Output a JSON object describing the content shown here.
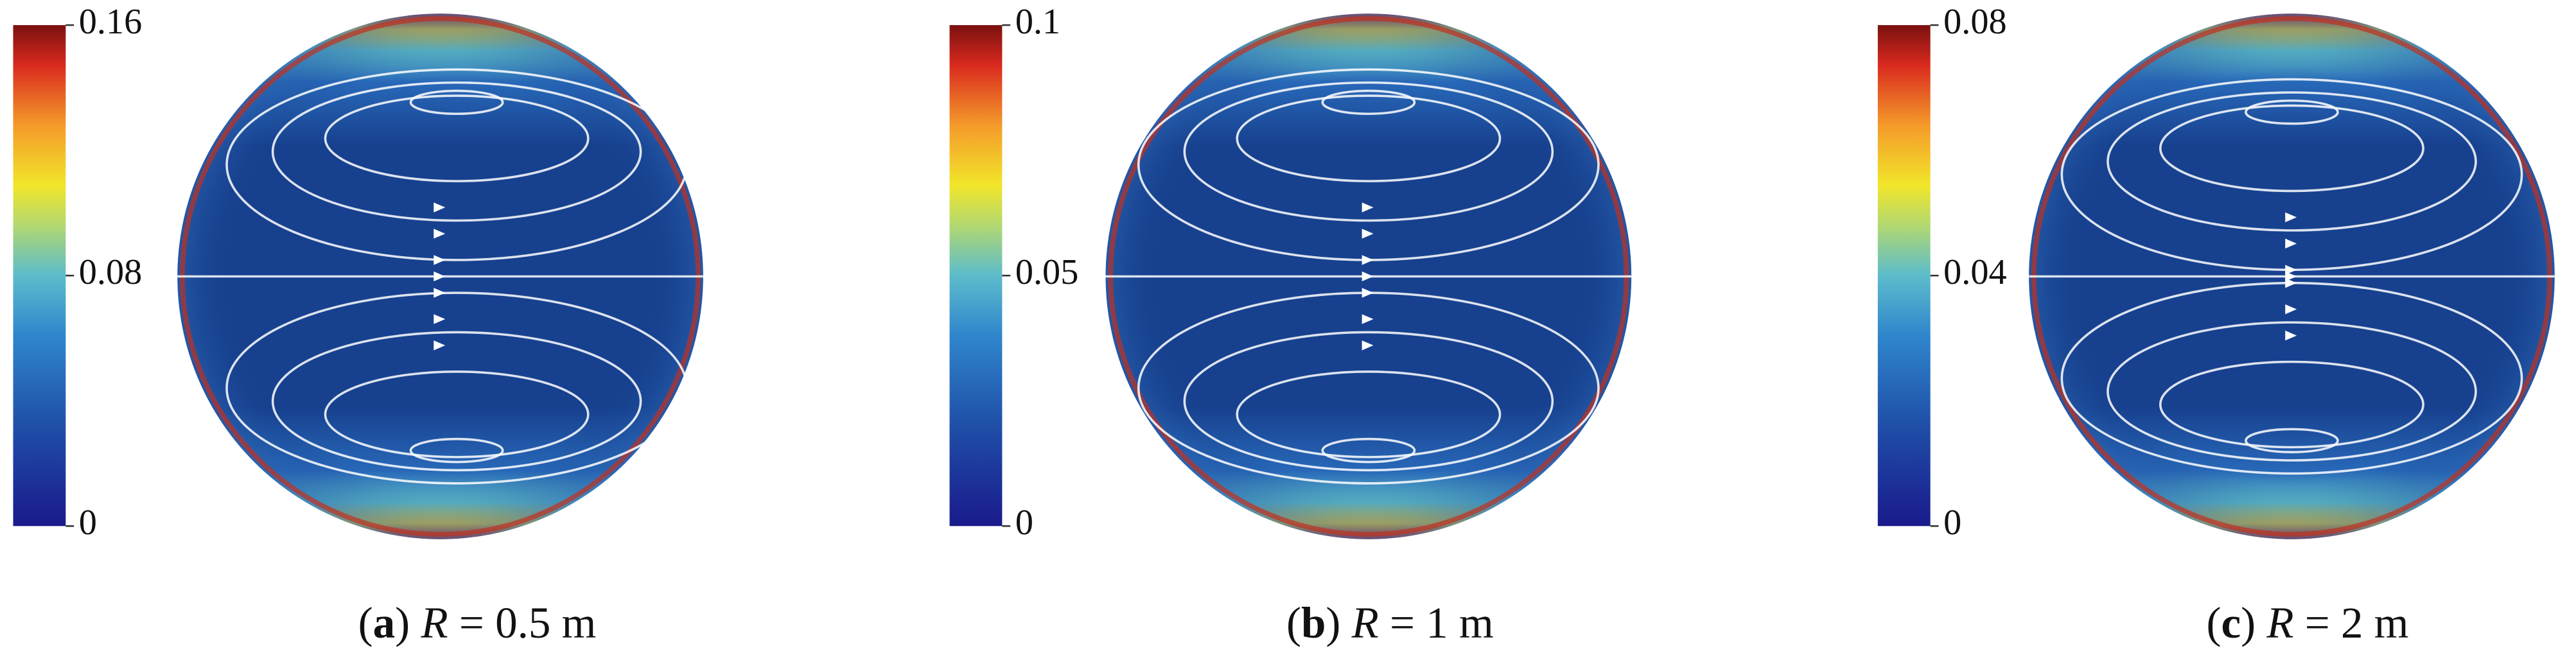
{
  "panels": [
    {
      "caption": [
        {
          "text": "(",
          "style": "normal"
        },
        {
          "text": "a",
          "style": "bold"
        },
        {
          "text": ") ",
          "style": "normal"
        },
        {
          "text": "R",
          "style": "italic"
        },
        {
          "text": " = 0.5 m",
          "style": "normal"
        }
      ],
      "colorbar": {
        "lim": [
          0,
          0.16
        ],
        "ticks": [
          0,
          0.08,
          0.16
        ]
      }
    },
    {
      "caption": [
        {
          "text": "(",
          "style": "normal"
        },
        {
          "text": "b",
          "style": "bold"
        },
        {
          "text": ") ",
          "style": "normal"
        },
        {
          "text": "R",
          "style": "italic"
        },
        {
          "text": " = 1 m",
          "style": "normal"
        }
      ],
      "colorbar": {
        "lim": [
          0,
          0.1
        ],
        "ticks": [
          0,
          0.05,
          0.1
        ]
      }
    },
    {
      "caption": [
        {
          "text": "(",
          "style": "normal"
        },
        {
          "text": "c",
          "style": "bold"
        },
        {
          "text": ") ",
          "style": "normal"
        },
        {
          "text": "R",
          "style": "italic"
        },
        {
          "text": " = 2 m",
          "style": "normal"
        }
      ],
      "colorbar": {
        "lim": [
          0,
          0.08
        ],
        "ticks": [
          0,
          0.04,
          0.08
        ]
      }
    }
  ]
}
